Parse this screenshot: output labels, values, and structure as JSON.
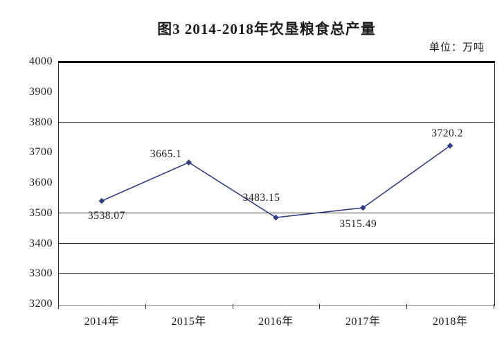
{
  "title": "图3  2014-2018年农垦粮食总产量",
  "unit_label": "单位：万吨",
  "chart_data": {
    "type": "line",
    "title": "图3 2014-2018年农垦粮食总产量",
    "unit": "万吨",
    "categories": [
      "2014年",
      "2015年",
      "2016年",
      "2017年",
      "2018年"
    ],
    "values": [
      3538.07,
      3665.1,
      3483.15,
      3515.49,
      3720.2
    ],
    "point_labels": [
      "3538.07",
      "3665.1",
      "3483.15",
      "3515.49",
      "3720.2"
    ],
    "ylim": [
      3200,
      4000
    ],
    "ytick_step": 100,
    "ytick_labels": [
      "4000",
      "3900",
      "3800",
      "3700",
      "3600",
      "3500",
      "3400",
      "3300",
      "3200"
    ],
    "gridline_values": [
      3800,
      3500,
      3400,
      3300
    ],
    "grid": "partial-horizontal",
    "legend": "none",
    "xlabel": "",
    "ylabel": "",
    "line_color": "#2f3e86",
    "marker": "diamond",
    "text_color": "#1c1c1c",
    "background_color": "#ffffff"
  }
}
